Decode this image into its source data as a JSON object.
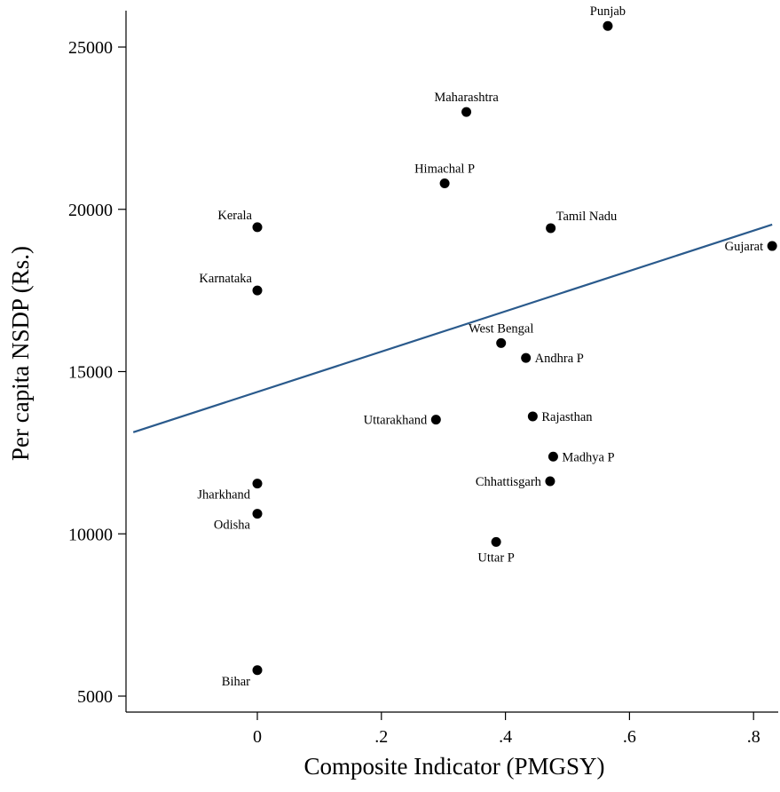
{
  "chart_data": {
    "type": "scatter",
    "title": "",
    "xlabel": "Composite Indicator (PMGSY)",
    "ylabel": "Per capita NSDP (Rs.)",
    "xlim": [
      -0.21,
      0.84
    ],
    "ylim": [
      4300,
      26300
    ],
    "x_ticks": [
      0,
      0.2,
      0.4,
      0.6,
      0.8
    ],
    "x_tick_labels": [
      "0",
      ".2",
      ".4",
      ".6",
      ".8"
    ],
    "y_ticks": [
      5000,
      10000,
      15000,
      20000,
      25000
    ],
    "y_tick_labels": [
      "5000",
      "10000",
      "15000",
      "20000",
      "25000"
    ],
    "grid": false,
    "marker_color": "#000000",
    "fit_line_color": "#2a5a8c",
    "points": [
      {
        "label": "Punjab",
        "x": 0.565,
        "y": 25650,
        "label_pos": "above"
      },
      {
        "label": "Maharashtra",
        "x": 0.337,
        "y": 23000,
        "label_pos": "above"
      },
      {
        "label": "Himachal P",
        "x": 0.302,
        "y": 20800,
        "label_pos": "above"
      },
      {
        "label": "Kerala",
        "x": 0.0,
        "y": 19450,
        "label_pos": "above-left"
      },
      {
        "label": "Tamil Nadu",
        "x": 0.473,
        "y": 19420,
        "label_pos": "above-right"
      },
      {
        "label": "Gujarat",
        "x": 0.83,
        "y": 18870,
        "label_pos": "left"
      },
      {
        "label": "Karnataka",
        "x": 0.0,
        "y": 17500,
        "label_pos": "above-left"
      },
      {
        "label": "West Bengal",
        "x": 0.393,
        "y": 15880,
        "label_pos": "above"
      },
      {
        "label": "Andhra P",
        "x": 0.433,
        "y": 15420,
        "label_pos": "right"
      },
      {
        "label": "Uttarakhand",
        "x": 0.288,
        "y": 13520,
        "label_pos": "left"
      },
      {
        "label": "Rajasthan",
        "x": 0.444,
        "y": 13620,
        "label_pos": "right"
      },
      {
        "label": "Madhya P",
        "x": 0.477,
        "y": 12380,
        "label_pos": "right"
      },
      {
        "label": "Chhattisgarh",
        "x": 0.472,
        "y": 11620,
        "label_pos": "left"
      },
      {
        "label": "Jharkhand",
        "x": 0.0,
        "y": 11550,
        "label_pos": "below-left"
      },
      {
        "label": "Odisha",
        "x": 0.0,
        "y": 10620,
        "label_pos": "below-left"
      },
      {
        "label": "Uttar P",
        "x": 0.385,
        "y": 9750,
        "label_pos": "below"
      },
      {
        "label": "Bihar",
        "x": 0.0,
        "y": 5800,
        "label_pos": "below-left"
      }
    ],
    "fit_line": {
      "x": [
        -0.2,
        0.83
      ],
      "y": [
        13130,
        19530
      ]
    }
  }
}
